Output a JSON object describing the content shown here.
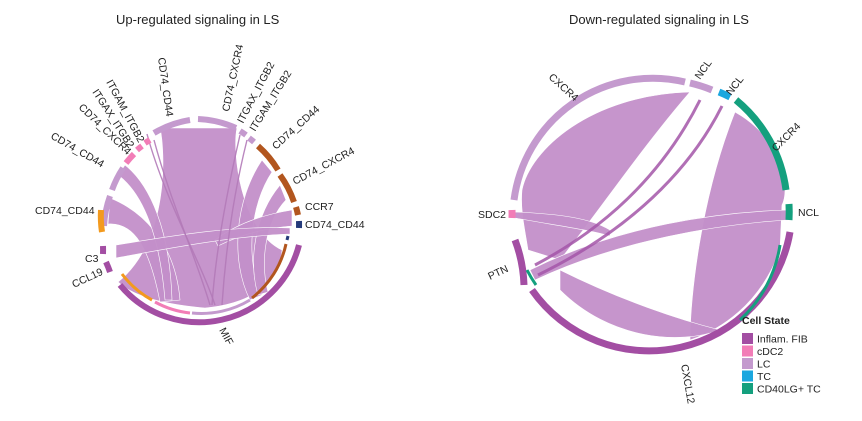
{
  "left_panel": {
    "title": "Up-regulated signaling in LS",
    "labels": {
      "cd74_cxcr4_top": "CD74_CXCR4",
      "cd74_cd44_top": "CD74_CD44",
      "itgam_itgb2_a": "ITGAM_ITGB2",
      "itgax_itgb2_a": "ITGAX_ITGB2",
      "cd74_cxcr4_left": "CD74_CXCR4",
      "cd74_cd44_left1": "CD74_CD44",
      "cd74_cd44_left2": "CD74_CD44",
      "c3": "C3",
      "ccl19": "CCL19",
      "mif": "MIF",
      "itgax_itgb2_b": "ITGAX_ITGB2",
      "itgam_itgb2_b": "ITGAM_ITGB2",
      "cd74_cd44_right1": "CD74_CD44",
      "cd74_cxcr4_right": "CD74_CXCR4",
      "ccr7": "CCR7",
      "cd74_cd44_right2": "CD74_CD44"
    }
  },
  "right_panel": {
    "title": "Down-regulated signaling in LS",
    "labels": {
      "cxcr4_top": "CXCR4",
      "ncl_top1": "NCL",
      "ncl_top2": "NCL",
      "cxcr4_right": "CXCR4",
      "ncl_right": "NCL",
      "sdc2": "SDC2",
      "ptn": "PTN",
      "cxcl12": "CXCL12"
    }
  },
  "legend": {
    "title": "Cell State",
    "items": [
      {
        "label": "Inflam. FIB",
        "color": "#a34ea3"
      },
      {
        "label": "cDC2",
        "color": "#f27db7"
      },
      {
        "label": "LC",
        "color": "#c49ace"
      },
      {
        "label": "TC",
        "color": "#1ba7df"
      },
      {
        "label": "CD40LG+ TC",
        "color": "#14a07e"
      }
    ]
  },
  "colors": {
    "chord": "#c38fc9",
    "chord_dark": "#a356a8",
    "inflam_fib": "#a34ea3",
    "cdc2": "#f27db7",
    "lc": "#c49ace",
    "tc": "#1ba7df",
    "cd40lg_tc": "#14a07e",
    "orange": "#f39a1e",
    "brown": "#b2561e",
    "navy": "#243a7a"
  }
}
